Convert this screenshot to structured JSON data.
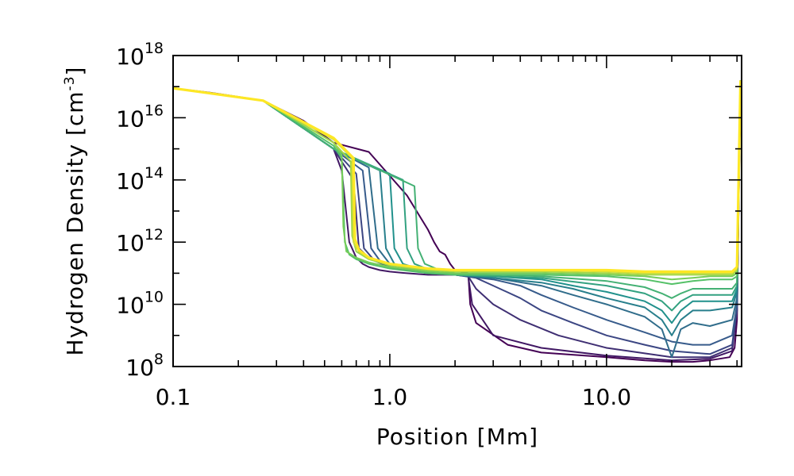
{
  "chart_data": {
    "type": "line",
    "xlabel": "Position [Mm]",
    "ylabel_text": "Hydrogen Density [cm",
    "ylabel_exp": "-3",
    "ylabel_close": "]",
    "x_scale": "log",
    "y_scale": "log",
    "xlim": [
      0.1,
      42
    ],
    "ylim": [
      100000000.0,
      1e+18
    ],
    "x_tick_labels": [
      {
        "value": 0.1,
        "label": "0.1"
      },
      {
        "value": 1.0,
        "label": "1.0"
      },
      {
        "value": 10.0,
        "label": "10.0"
      }
    ],
    "y_tick_labels": [
      {
        "value": 8,
        "base": "10",
        "exp": "8"
      },
      {
        "value": 10,
        "base": "10",
        "exp": "10"
      },
      {
        "value": 12,
        "base": "10",
        "exp": "12"
      },
      {
        "value": 14,
        "base": "10",
        "exp": "14"
      },
      {
        "value": 16,
        "base": "10",
        "exp": "16"
      },
      {
        "value": 18,
        "base": "10",
        "exp": "18"
      }
    ],
    "colormap": [
      "#440154",
      "#3b528b",
      "#21918c",
      "#5ec962",
      "#fde725"
    ],
    "series_description": "time evolution of a loop density profile (viridis, early = purple, late = yellow)",
    "series": [
      {
        "name": "t0",
        "x": [
          0.1,
          0.15,
          0.26,
          0.4,
          0.55,
          0.8,
          1.2,
          1.5,
          1.6,
          1.7,
          1.8,
          1.9,
          2.0,
          2.3,
          2.35,
          2.5,
          3.5,
          5,
          10,
          15,
          20,
          25,
          30,
          37,
          39,
          40,
          41.5
        ],
        "y_log": [
          16.95,
          16.8,
          16.55,
          15.9,
          15.2,
          14.9,
          13.5,
          12.4,
          12.0,
          11.7,
          11.6,
          11.3,
          11.1,
          11.0,
          10.0,
          9.4,
          8.7,
          8.45,
          8.3,
          8.2,
          8.15,
          8.15,
          8.2,
          8.3,
          8.6,
          9.5,
          17.2
        ]
      },
      {
        "name": "t1",
        "x": [
          0.1,
          0.26,
          0.55,
          0.6,
          0.65,
          0.7,
          0.75,
          0.8,
          0.9,
          1.0,
          1.2,
          1.5,
          1.7,
          2.0,
          2.3,
          2.4,
          3,
          5,
          10,
          20,
          30,
          38,
          40,
          41.5
        ],
        "y_log": [
          16.95,
          16.55,
          15.0,
          14.3,
          12.0,
          11.5,
          11.3,
          11.2,
          11.1,
          11.05,
          11.0,
          10.95,
          10.95,
          10.95,
          10.9,
          10.0,
          9.0,
          8.6,
          8.35,
          8.2,
          8.25,
          8.5,
          9.8,
          17.2
        ]
      },
      {
        "name": "t2",
        "x": [
          0.1,
          0.26,
          0.55,
          0.68,
          0.72,
          0.8,
          1.0,
          1.5,
          2.0,
          2.3,
          2.5,
          3,
          4,
          6,
          10,
          20,
          30,
          38,
          40,
          41.5
        ],
        "y_log": [
          16.95,
          16.55,
          15.0,
          14.0,
          11.8,
          11.5,
          11.2,
          11.0,
          10.95,
          10.9,
          10.5,
          10.0,
          9.5,
          9.0,
          8.6,
          8.3,
          8.3,
          8.6,
          9.8,
          17.2
        ]
      },
      {
        "name": "t3",
        "x": [
          0.1,
          0.26,
          0.55,
          0.7,
          0.76,
          0.85,
          1.0,
          1.5,
          2.0,
          2.5,
          3,
          4,
          5,
          7,
          10,
          15,
          20,
          30,
          38,
          40,
          41.5
        ],
        "y_log": [
          16.95,
          16.55,
          15.0,
          14.2,
          11.8,
          11.4,
          11.2,
          11.0,
          10.95,
          10.85,
          10.6,
          10.2,
          9.8,
          9.4,
          9.0,
          8.7,
          8.5,
          8.4,
          8.7,
          9.9,
          17.2
        ]
      },
      {
        "name": "t4",
        "x": [
          0.1,
          0.26,
          0.55,
          0.75,
          0.82,
          0.9,
          1.0,
          1.5,
          2.0,
          3,
          4,
          5,
          7,
          10,
          15,
          20,
          25,
          30,
          38,
          40,
          41.5
        ],
        "y_log": [
          16.95,
          16.55,
          15.0,
          14.3,
          11.8,
          11.4,
          11.2,
          11.0,
          10.95,
          10.8,
          10.6,
          10.3,
          9.9,
          9.5,
          9.1,
          8.8,
          8.7,
          8.7,
          9.0,
          10.0,
          17.2
        ]
      },
      {
        "name": "t5",
        "x": [
          0.1,
          0.26,
          0.55,
          0.8,
          0.88,
          1.0,
          1.5,
          2.0,
          3,
          5,
          7,
          10,
          15,
          18,
          20,
          22,
          25,
          30,
          38,
          40,
          41.5
        ],
        "y_log": [
          16.95,
          16.55,
          15.0,
          14.4,
          11.8,
          11.3,
          11.0,
          10.95,
          10.85,
          10.6,
          10.3,
          10.0,
          9.6,
          9.2,
          8.3,
          9.2,
          9.4,
          9.3,
          9.5,
          10.2,
          17.2
        ]
      },
      {
        "name": "t6",
        "x": [
          0.1,
          0.26,
          0.55,
          0.9,
          0.96,
          1.05,
          1.5,
          2.0,
          3,
          5,
          7,
          10,
          15,
          18,
          20,
          22,
          25,
          30,
          38,
          40,
          41.5
        ],
        "y_log": [
          16.95,
          16.55,
          15.0,
          14.3,
          11.8,
          11.3,
          11.05,
          10.95,
          10.85,
          10.7,
          10.5,
          10.2,
          9.9,
          9.5,
          9.0,
          9.5,
          9.8,
          9.8,
          9.9,
          10.4,
          17.2
        ]
      },
      {
        "name": "t7",
        "x": [
          0.1,
          0.26,
          0.55,
          1.0,
          1.05,
          1.15,
          1.5,
          2.0,
          3,
          5,
          7,
          10,
          15,
          18,
          20,
          22,
          25,
          30,
          38,
          40,
          41.5
        ],
        "y_log": [
          16.95,
          16.55,
          15.0,
          14.2,
          11.8,
          11.3,
          11.05,
          10.95,
          10.9,
          10.8,
          10.6,
          10.4,
          10.1,
          9.8,
          9.4,
          9.8,
          10.1,
          10.1,
          10.1,
          10.5,
          17.2
        ]
      },
      {
        "name": "t8",
        "x": [
          0.1,
          0.26,
          0.55,
          1.15,
          1.2,
          1.3,
          1.6,
          2.0,
          3,
          5,
          10,
          15,
          18,
          20,
          22,
          25,
          30,
          38,
          40,
          41.5
        ],
        "y_log": [
          16.95,
          16.55,
          15.0,
          14.0,
          11.8,
          11.3,
          11.05,
          10.95,
          10.9,
          10.85,
          10.6,
          10.35,
          10.1,
          9.8,
          10.1,
          10.3,
          10.3,
          10.3,
          10.6,
          17.2
        ]
      },
      {
        "name": "t9",
        "x": [
          0.1,
          0.26,
          0.55,
          1.3,
          1.35,
          1.45,
          1.7,
          2.0,
          3,
          5,
          10,
          15,
          18,
          20,
          22,
          25,
          30,
          38,
          40,
          41.5
        ],
        "y_log": [
          16.95,
          16.55,
          15.0,
          13.8,
          11.8,
          11.3,
          11.1,
          11.0,
          10.95,
          10.9,
          10.75,
          10.55,
          10.35,
          10.2,
          10.35,
          10.5,
          10.5,
          10.5,
          10.7,
          17.2
        ]
      },
      {
        "name": "t10",
        "x": [
          0.1,
          0.26,
          0.55,
          0.6,
          0.62,
          0.65,
          0.7,
          0.8,
          1.0,
          1.5,
          2,
          3,
          5,
          10,
          15,
          20,
          25,
          30,
          38,
          40,
          41.5
        ],
        "y_log": [
          16.95,
          16.55,
          15.1,
          14.7,
          12.0,
          11.6,
          11.45,
          11.3,
          11.15,
          11.0,
          10.95,
          10.95,
          10.95,
          10.9,
          10.8,
          10.65,
          10.75,
          10.8,
          10.8,
          10.9,
          17.2
        ]
      },
      {
        "name": "t11",
        "x": [
          0.1,
          0.26,
          0.55,
          0.6,
          0.61,
          0.63,
          0.7,
          0.8,
          1.0,
          1.5,
          2,
          3,
          5,
          10,
          15,
          20,
          25,
          30,
          38,
          40,
          41.5
        ],
        "y_log": [
          16.95,
          16.55,
          15.2,
          14.8,
          12.5,
          11.7,
          11.5,
          11.35,
          11.2,
          11.05,
          11.0,
          11.0,
          11.0,
          10.95,
          10.9,
          10.8,
          10.85,
          10.9,
          10.9,
          11.0,
          17.2
        ]
      },
      {
        "name": "t12",
        "x": [
          0.1,
          0.26,
          0.55,
          0.66,
          0.67,
          0.7,
          0.8,
          1.0,
          1.5,
          2,
          3,
          5,
          10,
          15,
          20,
          25,
          30,
          38,
          40,
          41.5
        ],
        "y_log": [
          16.95,
          16.55,
          15.2,
          14.6,
          12.2,
          11.7,
          11.45,
          11.25,
          11.1,
          11.05,
          11.05,
          11.05,
          11.0,
          10.95,
          10.95,
          10.95,
          10.95,
          10.95,
          11.1,
          17.2
        ]
      },
      {
        "name": "t13",
        "x": [
          0.1,
          0.26,
          0.55,
          0.67,
          0.68,
          0.72,
          0.8,
          1.0,
          1.5,
          2,
          3,
          5,
          10,
          15,
          20,
          25,
          30,
          38,
          40,
          41.5
        ],
        "y_log": [
          16.95,
          16.55,
          15.3,
          14.7,
          12.0,
          11.7,
          11.5,
          11.3,
          11.15,
          11.1,
          11.1,
          11.1,
          11.05,
          11.0,
          11.0,
          11.0,
          11.0,
          11.0,
          11.15,
          17.2
        ]
      },
      {
        "name": "t14",
        "x": [
          0.1,
          0.26,
          0.55,
          0.68,
          0.69,
          0.72,
          0.8,
          1.0,
          1.5,
          2,
          3,
          5,
          10,
          15,
          20,
          25,
          30,
          38,
          40,
          41.5
        ],
        "y_log": [
          16.95,
          16.55,
          15.35,
          14.7,
          12.1,
          11.75,
          11.5,
          11.3,
          11.15,
          11.1,
          11.1,
          11.1,
          11.1,
          11.05,
          11.05,
          11.05,
          11.05,
          11.05,
          11.2,
          17.2
        ]
      }
    ]
  }
}
